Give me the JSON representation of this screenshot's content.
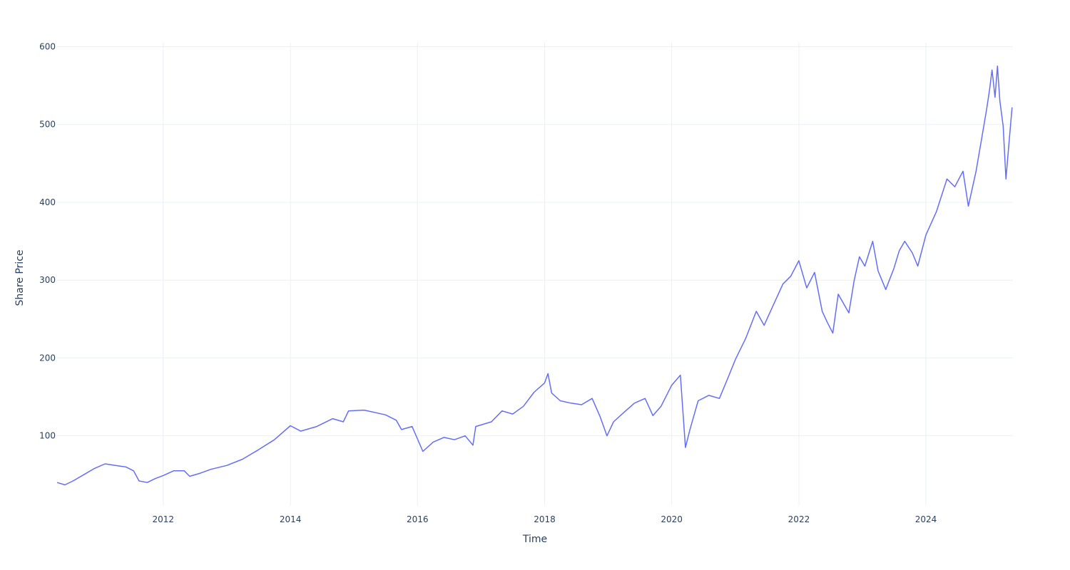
{
  "chart_data": {
    "type": "line",
    "title": "",
    "xlabel": "Time",
    "ylabel": "Share Price",
    "x_axis": {
      "type": "date",
      "range": [
        "2010-05-01",
        "2025-05-15"
      ],
      "ticks": [
        "2012-01-01",
        "2014-01-01",
        "2016-01-01",
        "2018-01-01",
        "2020-01-01",
        "2022-01-01",
        "2024-01-01"
      ],
      "tick_labels": [
        "2012",
        "2014",
        "2016",
        "2018",
        "2020",
        "2022",
        "2024"
      ]
    },
    "y_axis": {
      "range": [
        10,
        605
      ],
      "ticks": [
        100,
        200,
        300,
        400,
        500,
        600
      ],
      "tick_labels": [
        "100",
        "200",
        "300",
        "400",
        "500",
        "600"
      ]
    },
    "grid": true,
    "legend": "none",
    "colors": {
      "line": "#636efa",
      "grid": "#ebf0f8",
      "text": "#2a3f5f"
    },
    "series": [
      {
        "points": [
          [
            "2010-05-01",
            40
          ],
          [
            "2010-06-15",
            37
          ],
          [
            "2010-08-01",
            42
          ],
          [
            "2010-10-01",
            50
          ],
          [
            "2010-12-01",
            58
          ],
          [
            "2011-02-01",
            64
          ],
          [
            "2011-04-01",
            62
          ],
          [
            "2011-06-01",
            60
          ],
          [
            "2011-07-15",
            55
          ],
          [
            "2011-08-15",
            42
          ],
          [
            "2011-10-01",
            40
          ],
          [
            "2011-11-15",
            45
          ],
          [
            "2012-01-01",
            49
          ],
          [
            "2012-03-01",
            55
          ],
          [
            "2012-05-01",
            55
          ],
          [
            "2012-06-01",
            48
          ],
          [
            "2012-08-01",
            52
          ],
          [
            "2012-10-01",
            57
          ],
          [
            "2013-01-01",
            62
          ],
          [
            "2013-04-01",
            70
          ],
          [
            "2013-07-01",
            82
          ],
          [
            "2013-10-01",
            95
          ],
          [
            "2014-01-01",
            113
          ],
          [
            "2014-03-01",
            106
          ],
          [
            "2014-06-01",
            112
          ],
          [
            "2014-09-01",
            122
          ],
          [
            "2014-11-01",
            118
          ],
          [
            "2014-12-01",
            132
          ],
          [
            "2015-03-01",
            133
          ],
          [
            "2015-07-01",
            127
          ],
          [
            "2015-09-01",
            120
          ],
          [
            "2015-10-01",
            108
          ],
          [
            "2015-12-01",
            112
          ],
          [
            "2016-02-01",
            80
          ],
          [
            "2016-04-01",
            92
          ],
          [
            "2016-06-01",
            98
          ],
          [
            "2016-08-01",
            95
          ],
          [
            "2016-10-01",
            100
          ],
          [
            "2016-11-15",
            88
          ],
          [
            "2016-12-01",
            112
          ],
          [
            "2017-03-01",
            118
          ],
          [
            "2017-05-01",
            132
          ],
          [
            "2017-07-01",
            128
          ],
          [
            "2017-09-01",
            138
          ],
          [
            "2017-11-01",
            156
          ],
          [
            "2018-01-01",
            168
          ],
          [
            "2018-01-20",
            180
          ],
          [
            "2018-02-10",
            155
          ],
          [
            "2018-04-01",
            145
          ],
          [
            "2018-06-01",
            142
          ],
          [
            "2018-08-01",
            140
          ],
          [
            "2018-10-01",
            148
          ],
          [
            "2018-11-15",
            125
          ],
          [
            "2018-12-25",
            100
          ],
          [
            "2019-02-01",
            118
          ],
          [
            "2019-04-01",
            130
          ],
          [
            "2019-06-01",
            142
          ],
          [
            "2019-08-01",
            148
          ],
          [
            "2019-09-15",
            126
          ],
          [
            "2019-11-01",
            138
          ],
          [
            "2020-01-01",
            165
          ],
          [
            "2020-02-20",
            178
          ],
          [
            "2020-03-20",
            85
          ],
          [
            "2020-04-15",
            108
          ],
          [
            "2020-06-01",
            145
          ],
          [
            "2020-08-01",
            152
          ],
          [
            "2020-10-01",
            148
          ],
          [
            "2020-11-15",
            172
          ],
          [
            "2021-01-01",
            198
          ],
          [
            "2021-03-01",
            225
          ],
          [
            "2021-05-01",
            260
          ],
          [
            "2021-06-15",
            242
          ],
          [
            "2021-08-01",
            265
          ],
          [
            "2021-10-01",
            295
          ],
          [
            "2021-11-15",
            305
          ],
          [
            "2022-01-01",
            325
          ],
          [
            "2022-02-15",
            290
          ],
          [
            "2022-04-01",
            310
          ],
          [
            "2022-05-15",
            260
          ],
          [
            "2022-06-15",
            245
          ],
          [
            "2022-07-15",
            232
          ],
          [
            "2022-08-15",
            282
          ],
          [
            "2022-10-15",
            258
          ],
          [
            "2022-11-15",
            300
          ],
          [
            "2022-12-15",
            330
          ],
          [
            "2023-01-15",
            318
          ],
          [
            "2023-03-01",
            350
          ],
          [
            "2023-04-01",
            312
          ],
          [
            "2023-05-15",
            288
          ],
          [
            "2023-07-01",
            315
          ],
          [
            "2023-08-01",
            338
          ],
          [
            "2023-09-01",
            350
          ],
          [
            "2023-10-15",
            335
          ],
          [
            "2023-11-15",
            318
          ],
          [
            "2024-01-01",
            358
          ],
          [
            "2024-03-01",
            388
          ],
          [
            "2024-05-01",
            430
          ],
          [
            "2024-06-15",
            420
          ],
          [
            "2024-08-01",
            440
          ],
          [
            "2024-09-01",
            395
          ],
          [
            "2024-10-15",
            440
          ],
          [
            "2024-11-15",
            480
          ],
          [
            "2024-12-15",
            520
          ],
          [
            "2025-01-01",
            545
          ],
          [
            "2025-01-15",
            570
          ],
          [
            "2025-02-01",
            535
          ],
          [
            "2025-02-15",
            575
          ],
          [
            "2025-03-01",
            530
          ],
          [
            "2025-03-20",
            498
          ],
          [
            "2025-04-05",
            430
          ],
          [
            "2025-04-20",
            470
          ],
          [
            "2025-05-10",
            522
          ]
        ]
      }
    ]
  }
}
